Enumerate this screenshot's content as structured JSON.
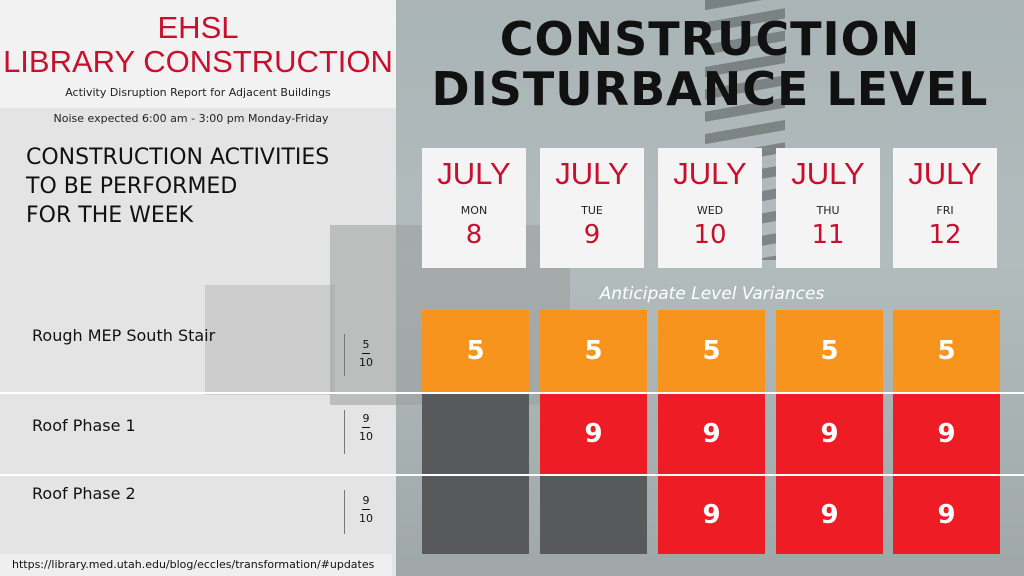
{
  "header": {
    "title_line1": "EHSL",
    "title_line2": "LIBRARY CONSTRUCTION",
    "subtitle": "Activity Disruption Report for Adjacent Buildings",
    "noise_note": "Noise expected 6:00 am - 3:00 pm Monday-Friday"
  },
  "activities_heading": {
    "line1": "CONSTRUCTION ACTIVITIES",
    "line2": "TO BE PERFORMED",
    "line3": "FOR THE WEEK"
  },
  "main_title": {
    "line1": "CONSTRUCTION",
    "line2": "DISTURBANCE LEVEL"
  },
  "days": [
    {
      "month": "JULY",
      "dow": "MON",
      "date": "8"
    },
    {
      "month": "JULY",
      "dow": "TUE",
      "date": "9"
    },
    {
      "month": "JULY",
      "dow": "WED",
      "date": "10"
    },
    {
      "month": "JULY",
      "dow": "THU",
      "date": "11"
    },
    {
      "month": "JULY",
      "dow": "FRI",
      "date": "12"
    }
  ],
  "variance_label": "Anticipate Level Variances",
  "rows": [
    {
      "name": "Rough MEP South Stair",
      "score_num": "5",
      "score_den": "10",
      "levels": [
        "5",
        "5",
        "5",
        "5",
        "5"
      ]
    },
    {
      "name": "Roof Phase 1",
      "score_num": "9",
      "score_den": "10",
      "levels": [
        "",
        "9",
        "9",
        "9",
        "9"
      ]
    },
    {
      "name": "Roof Phase 2",
      "score_num": "9",
      "score_den": "10",
      "levels": [
        "",
        "",
        "9",
        "9",
        "9"
      ]
    }
  ],
  "colors": {
    "orange": "#f7941d",
    "red": "#ee1c25",
    "gray": "#58595b",
    "brand_red": "#c8102e"
  },
  "footer_url": "https://library.med.utah.edu/blog/eccles/transformation/#updates"
}
